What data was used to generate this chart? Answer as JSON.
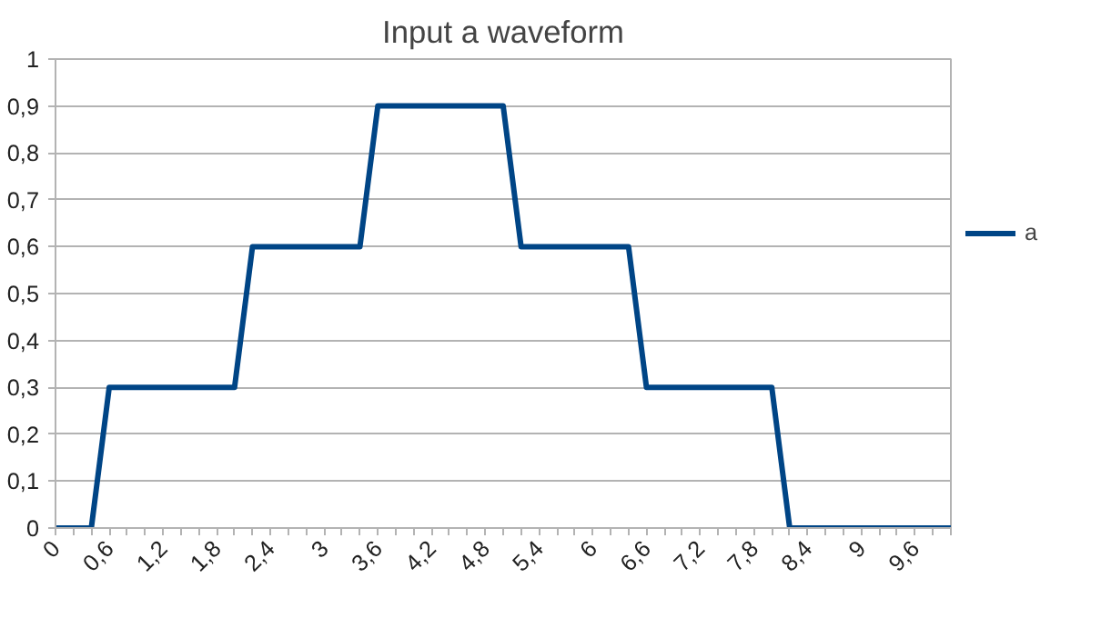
{
  "chart_data": {
    "type": "line",
    "title": "Input a waveform",
    "x": [
      0,
      0.2,
      0.4,
      0.6,
      0.8,
      1,
      1.2,
      1.4,
      1.6,
      1.8,
      2,
      2.2,
      2.4,
      2.6,
      2.8,
      3,
      3.2,
      3.4,
      3.6,
      3.8,
      4,
      4.2,
      4.4,
      4.6,
      4.8,
      5,
      5.2,
      5.4,
      5.6,
      5.8,
      6,
      6.2,
      6.4,
      6.6,
      6.8,
      7,
      7.2,
      7.4,
      7.6,
      7.8,
      8,
      8.2,
      8.4,
      8.6,
      8.8,
      9,
      9.2,
      9.4,
      9.6,
      9.8,
      10
    ],
    "series": [
      {
        "name": "a",
        "color": "#004586",
        "values": [
          0,
          0,
          0,
          0.3,
          0.3,
          0.3,
          0.3,
          0.3,
          0.3,
          0.3,
          0.3,
          0.6,
          0.6,
          0.6,
          0.6,
          0.6,
          0.6,
          0.6,
          0.9,
          0.9,
          0.9,
          0.9,
          0.9,
          0.9,
          0.9,
          0.9,
          0.6,
          0.6,
          0.6,
          0.6,
          0.6,
          0.6,
          0.6,
          0.3,
          0.3,
          0.3,
          0.3,
          0.3,
          0.3,
          0.3,
          0.3,
          0,
          0,
          0,
          0,
          0,
          0,
          0,
          0,
          0,
          0
        ]
      }
    ],
    "xlim": [
      0,
      10
    ],
    "ylim": [
      0,
      1
    ],
    "xticks": [
      {
        "value": 0,
        "label": "0"
      },
      {
        "value": 0.2,
        "label": null
      },
      {
        "value": 0.4,
        "label": null
      },
      {
        "value": 0.6,
        "label": "0,6"
      },
      {
        "value": 0.8,
        "label": null
      },
      {
        "value": 1,
        "label": null
      },
      {
        "value": 1.2,
        "label": "1,2"
      },
      {
        "value": 1.4,
        "label": null
      },
      {
        "value": 1.6,
        "label": null
      },
      {
        "value": 1.8,
        "label": "1,8"
      },
      {
        "value": 2,
        "label": null
      },
      {
        "value": 2.2,
        "label": null
      },
      {
        "value": 2.4,
        "label": "2,4"
      },
      {
        "value": 2.6,
        "label": null
      },
      {
        "value": 2.8,
        "label": null
      },
      {
        "value": 3,
        "label": "3"
      },
      {
        "value": 3.2,
        "label": null
      },
      {
        "value": 3.4,
        "label": null
      },
      {
        "value": 3.6,
        "label": "3,6"
      },
      {
        "value": 3.8,
        "label": null
      },
      {
        "value": 4,
        "label": null
      },
      {
        "value": 4.2,
        "label": "4,2"
      },
      {
        "value": 4.4,
        "label": null
      },
      {
        "value": 4.6,
        "label": null
      },
      {
        "value": 4.8,
        "label": "4,8"
      },
      {
        "value": 5,
        "label": null
      },
      {
        "value": 5.2,
        "label": null
      },
      {
        "value": 5.4,
        "label": "5,4"
      },
      {
        "value": 5.6,
        "label": null
      },
      {
        "value": 5.8,
        "label": null
      },
      {
        "value": 6,
        "label": "6"
      },
      {
        "value": 6.2,
        "label": null
      },
      {
        "value": 6.4,
        "label": null
      },
      {
        "value": 6.6,
        "label": "6,6"
      },
      {
        "value": 6.8,
        "label": null
      },
      {
        "value": 7,
        "label": null
      },
      {
        "value": 7.2,
        "label": "7,2"
      },
      {
        "value": 7.4,
        "label": null
      },
      {
        "value": 7.6,
        "label": null
      },
      {
        "value": 7.8,
        "label": "7,8"
      },
      {
        "value": 8,
        "label": null
      },
      {
        "value": 8.2,
        "label": null
      },
      {
        "value": 8.4,
        "label": "8,4"
      },
      {
        "value": 8.6,
        "label": null
      },
      {
        "value": 8.8,
        "label": null
      },
      {
        "value": 9,
        "label": "9"
      },
      {
        "value": 9.2,
        "label": null
      },
      {
        "value": 9.4,
        "label": null
      },
      {
        "value": 9.6,
        "label": "9,6"
      },
      {
        "value": 9.8,
        "label": null
      },
      {
        "value": 10,
        "label": null
      }
    ],
    "yticks": [
      {
        "value": 0,
        "label": "0"
      },
      {
        "value": 0.1,
        "label": "0,1"
      },
      {
        "value": 0.2,
        "label": "0,2"
      },
      {
        "value": 0.3,
        "label": "0,3"
      },
      {
        "value": 0.4,
        "label": "0,4"
      },
      {
        "value": 0.5,
        "label": "0,5"
      },
      {
        "value": 0.6,
        "label": "0,6"
      },
      {
        "value": 0.7,
        "label": "0,7"
      },
      {
        "value": 0.8,
        "label": "0,8"
      },
      {
        "value": 0.9,
        "label": "0,9"
      },
      {
        "value": 1,
        "label": "1"
      }
    ],
    "grid": "y",
    "legend": "right",
    "marker": "none",
    "line_style": "solid"
  }
}
